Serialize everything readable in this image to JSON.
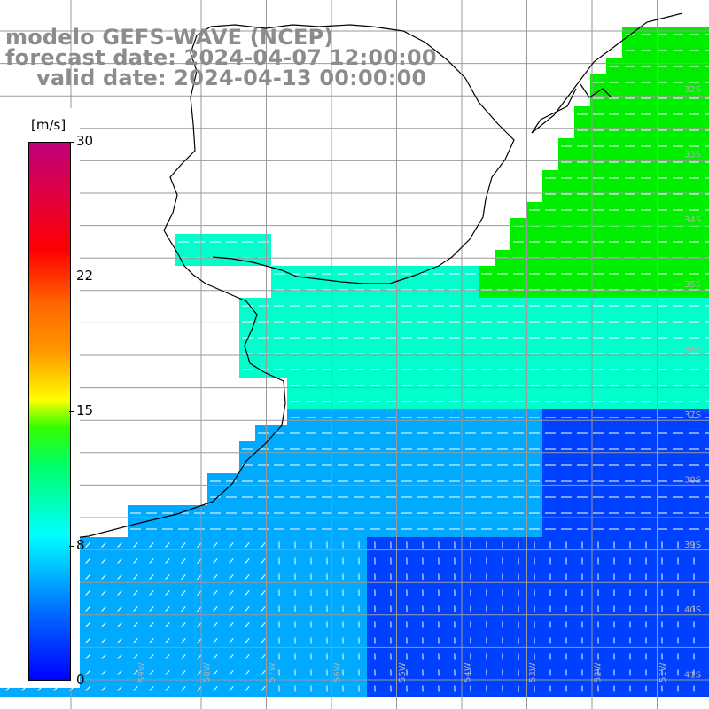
{
  "title": {
    "model": "modelo GEFS-WAVE (NCEP)",
    "forecast": "forecast date: 2024-04-07 12:00:00",
    "valid": "valid date: 2024-04-13 00:00:00"
  },
  "legend": {
    "unit": "[m/s]",
    "ticks": [
      "30",
      "22",
      "15",
      "8",
      "0"
    ],
    "colors": [
      "#0000ff",
      "#00ccff",
      "#00ff66",
      "#ffff00",
      "#ff0000",
      "#c0007a"
    ]
  },
  "map": {
    "lat_labels": [
      "32S",
      "33S",
      "34S",
      "35S",
      "36S",
      "37S",
      "38S",
      "39S",
      "40S",
      "41S"
    ],
    "lon_labels": [
      "61W",
      "60W",
      "59W",
      "58W",
      "57W",
      "56W",
      "55W",
      "54W",
      "53W",
      "52W",
      "51W"
    ],
    "colors": {
      "strong": "#00ee00",
      "medium": "#00ffcc",
      "weak": "#00aaff",
      "calm": "#0040ff",
      "grid": "#9a9a9a",
      "coast": "#000000"
    }
  }
}
